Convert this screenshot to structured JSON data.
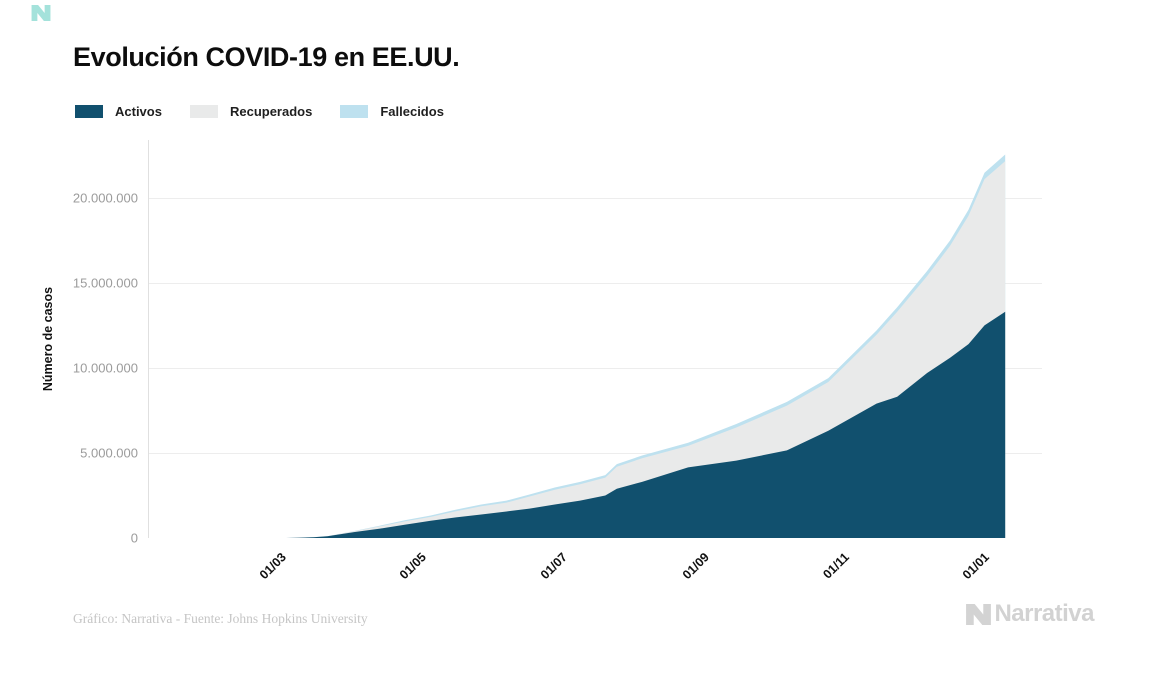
{
  "page": {
    "title": "Evolución COVID-19 en EE.UU.",
    "credit": "Gráfico: Narrativa - Fuente: Johns Hopkins University",
    "brand_name": "Narrativa",
    "brand_footer_color": "#d3d3d3",
    "brand_corner_color": "#4cc6b8"
  },
  "legend": {
    "items": [
      {
        "label": "Activos",
        "color": "#11506E"
      },
      {
        "label": "Recuperados",
        "color": "#E9EAEA"
      },
      {
        "label": "Fallecidos",
        "color": "#BEE1EF"
      }
    ]
  },
  "chart_data": {
    "type": "area",
    "stacked": true,
    "title": "Evolución COVID-19 en EE.UU.",
    "xlabel": "",
    "ylabel": "Número de casos",
    "legend_position": "top",
    "grid": true,
    "grid_color": "#ededed",
    "axis_line_color": "#e0e0e0",
    "x_domain": [
      "2020-01-10",
      "2021-02-02"
    ],
    "y_domain": [
      0,
      23400000
    ],
    "y_ticks": [
      {
        "value": 0,
        "label": "0"
      },
      {
        "value": 5000000,
        "label": "5.000.000"
      },
      {
        "value": 10000000,
        "label": "10.000.000"
      },
      {
        "value": 15000000,
        "label": "15.000.000"
      },
      {
        "value": 20000000,
        "label": "20.000.000"
      }
    ],
    "x_ticks": [
      {
        "date": "2020-03-01",
        "label": "01/03"
      },
      {
        "date": "2020-05-01",
        "label": "01/05"
      },
      {
        "date": "2020-07-01",
        "label": "01/07"
      },
      {
        "date": "2020-09-01",
        "label": "01/09"
      },
      {
        "date": "2020-11-01",
        "label": "01/11"
      },
      {
        "date": "2021-01-01",
        "label": "01/01"
      }
    ],
    "series_order": [
      "activos",
      "recuperados",
      "fallecidos"
    ],
    "points": [
      {
        "date": "2020-03-10",
        "activos": 2000,
        "recuperados": 100,
        "fallecidos": 50
      },
      {
        "date": "2020-03-15",
        "activos": 10000,
        "recuperados": 500,
        "fallecidos": 100
      },
      {
        "date": "2020-03-22",
        "activos": 45000,
        "recuperados": 4000,
        "fallecidos": 1000
      },
      {
        "date": "2020-03-28",
        "activos": 100000,
        "recuperados": 5000,
        "fallecidos": 2000
      },
      {
        "date": "2020-04-09",
        "activos": 350000,
        "recuperados": 53000,
        "fallecidos": 17000
      },
      {
        "date": "2020-04-20",
        "activos": 550000,
        "recuperados": 138000,
        "fallecidos": 42000
      },
      {
        "date": "2020-05-01",
        "activos": 790000,
        "recuperados": 195000,
        "fallecidos": 65000
      },
      {
        "date": "2020-05-12",
        "activos": 1020000,
        "recuperados": 220000,
        "fallecidos": 82000
      },
      {
        "date": "2020-05-23",
        "activos": 1210000,
        "recuperados": 360000,
        "fallecidos": 97000
      },
      {
        "date": "2020-06-03",
        "activos": 1380000,
        "recuperados": 483000,
        "fallecidos": 107000
      },
      {
        "date": "2020-06-14",
        "activos": 1560000,
        "recuperados": 524000,
        "fallecidos": 116000
      },
      {
        "date": "2020-06-24",
        "activos": 1730000,
        "recuperados": 708000,
        "fallecidos": 122000
      },
      {
        "date": "2020-07-05",
        "activos": 1970000,
        "recuperados": 870000,
        "fallecidos": 130000
      },
      {
        "date": "2020-07-16",
        "activos": 2200000,
        "recuperados": 962000,
        "fallecidos": 138000
      },
      {
        "date": "2020-07-27",
        "activos": 2500000,
        "recuperados": 1052000,
        "fallecidos": 148000
      },
      {
        "date": "2020-08-01",
        "activos": 2900000,
        "recuperados": 1290000,
        "fallecidos": 155000
      },
      {
        "date": "2020-08-12",
        "activos": 3300000,
        "recuperados": 1384000,
        "fallecidos": 166000
      },
      {
        "date": "2020-09-01",
        "activos": 4150000,
        "recuperados": 1267000,
        "fallecidos": 183000
      },
      {
        "date": "2020-09-22",
        "activos": 4550000,
        "recuperados": 1949000,
        "fallecidos": 201000
      },
      {
        "date": "2020-10-14",
        "activos": 5150000,
        "recuperados": 2633000,
        "fallecidos": 217000
      },
      {
        "date": "2020-11-01",
        "activos": 6300000,
        "recuperados": 2869000,
        "fallecidos": 231000
      },
      {
        "date": "2020-11-22",
        "activos": 7900000,
        "recuperados": 4044000,
        "fallecidos": 256000
      },
      {
        "date": "2020-12-01",
        "activos": 8300000,
        "recuperados": 5000000,
        "fallecidos": 270000
      },
      {
        "date": "2020-12-14",
        "activos": 9700000,
        "recuperados": 5697000,
        "fallecidos": 303000
      },
      {
        "date": "2020-12-24",
        "activos": 10600000,
        "recuperados": 6580000,
        "fallecidos": 320000
      },
      {
        "date": "2021-01-01",
        "activos": 11400000,
        "recuperados": 7548000,
        "fallecidos": 352000
      },
      {
        "date": "2021-01-08",
        "activos": 12500000,
        "recuperados": 8600000,
        "fallecidos": 370000
      },
      {
        "date": "2021-01-17",
        "activos": 13300000,
        "recuperados": 8860000,
        "fallecidos": 390000
      }
    ]
  }
}
